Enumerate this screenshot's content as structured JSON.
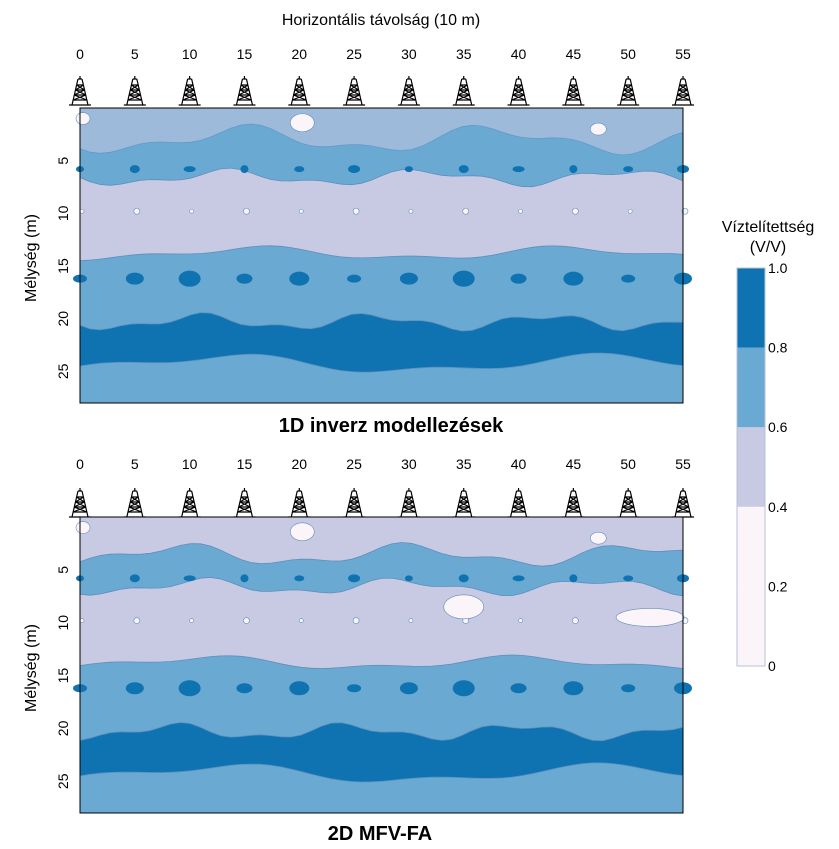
{
  "figure": {
    "top_axis_label": "Horizontális távolság (10 m)",
    "y_axis_label": "Mélység (m)"
  },
  "colorbar": {
    "title_line1": "Víztelítettség",
    "title_line2": "(V/V)",
    "tick_labels": [
      "1.0",
      "0.8",
      "0.6",
      "0.4",
      "0.2",
      "0"
    ],
    "levels": [
      0,
      0.2,
      0.4,
      0.6,
      0.8,
      1.0
    ],
    "colors": [
      "#fbf5fa",
      "#fbf5fa",
      "#c8c9e2",
      "#6aa9d1",
      "#0f73b2"
    ],
    "outline_color": "#5d8fbf"
  },
  "chart_data": [
    {
      "type": "heatmap",
      "title": "1D inverz modellezések",
      "xlabel": "Horizontális távolság (10 m)",
      "ylabel": "Mélység (m)",
      "x_ticks": [
        0,
        5,
        10,
        15,
        20,
        25,
        30,
        35,
        40,
        45,
        50,
        55
      ],
      "y_ticks": [
        5,
        10,
        15,
        20,
        25
      ],
      "xlim": [
        0,
        55
      ],
      "ylim": [
        0,
        28
      ],
      "well_positions": [
        0,
        5,
        10,
        15,
        20,
        25,
        30,
        35,
        40,
        45,
        50,
        55
      ],
      "depth_zones": [
        {
          "depth_range": [
            0,
            4
          ],
          "saturation_class": "0.6-0.8"
        },
        {
          "depth_range": [
            4,
            7
          ],
          "saturation_class": "0.6-0.8"
        },
        {
          "depth_range": [
            7,
            13
          ],
          "saturation_class": "0.4-0.6"
        },
        {
          "depth_range": [
            13,
            20
          ],
          "saturation_class": "0.6-0.8"
        },
        {
          "depth_range": [
            20,
            24
          ],
          "saturation_class": "0.8-1.0"
        },
        {
          "depth_range": [
            24,
            28
          ],
          "saturation_class": "0.6-0.8"
        }
      ]
    },
    {
      "type": "heatmap",
      "title": "2D MFV-FA",
      "xlabel": "Horizontális távolság (10 m)",
      "ylabel": "Mélység (m)",
      "x_ticks": [
        0,
        5,
        10,
        15,
        20,
        25,
        30,
        35,
        40,
        45,
        50,
        55
      ],
      "y_ticks": [
        5,
        10,
        15,
        20,
        25
      ],
      "xlim": [
        0,
        55
      ],
      "ylim": [
        0,
        28
      ],
      "well_positions": [
        0,
        5,
        10,
        15,
        20,
        25,
        30,
        35,
        40,
        45,
        50,
        55
      ],
      "depth_zones": [
        {
          "depth_range": [
            0,
            4
          ],
          "saturation_class": "0.4-0.6"
        },
        {
          "depth_range": [
            4,
            7
          ],
          "saturation_class": "0.6-0.8"
        },
        {
          "depth_range": [
            7,
            13
          ],
          "saturation_class": "0.4-0.6"
        },
        {
          "depth_range": [
            13,
            20
          ],
          "saturation_class": "0.6-0.8"
        },
        {
          "depth_range": [
            20,
            24
          ],
          "saturation_class": "0.8-1.0"
        },
        {
          "depth_range": [
            24,
            28
          ],
          "saturation_class": "0.6-0.8"
        }
      ]
    }
  ]
}
